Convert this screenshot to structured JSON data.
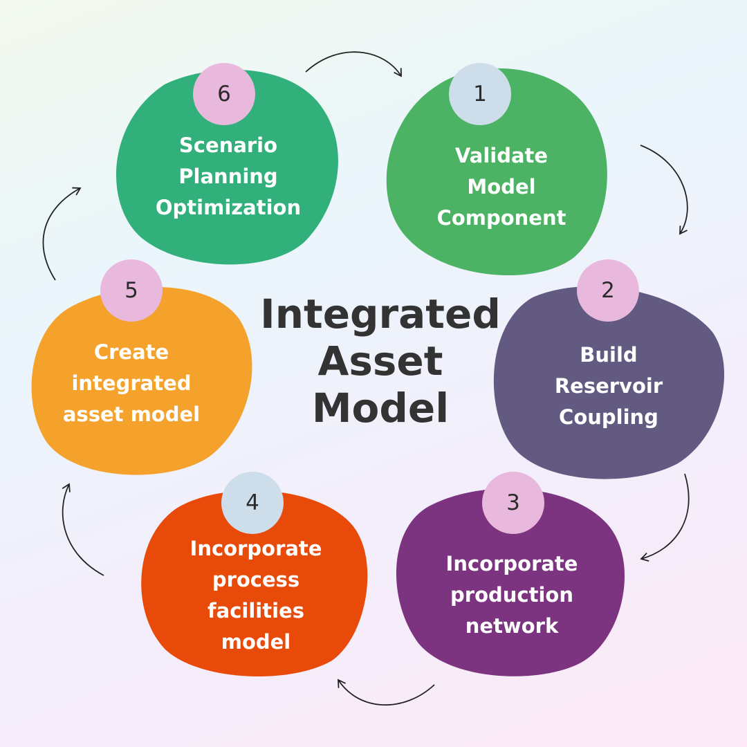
{
  "title": "Integrated\nAsset\nModel",
  "steps": [
    {
      "number": "1",
      "label": "Validate\nModel\nComponent",
      "color": "#4cb364",
      "badge_color": "#cdddea"
    },
    {
      "number": "2",
      "label": "Build\nReservoir\nCoupling",
      "color": "#625a80",
      "badge_color": "#e8b9dc"
    },
    {
      "number": "3",
      "label": "Incorporate\nproduction\nnetwork",
      "color": "#7d3480",
      "badge_color": "#e8b9dc"
    },
    {
      "number": "4",
      "label": "Incorporate\nprocess\nfacilities\nmodel",
      "color": "#e84a0a",
      "badge_color": "#cdddea"
    },
    {
      "number": "5",
      "label": "Create\nintegrated\nasset model",
      "color": "#f5a22c",
      "badge_color": "#e8b9dc"
    },
    {
      "number": "6",
      "label": "Scenario\nPlanning\nOptimization",
      "color": "#32b07b",
      "badge_color": "#e8b9dc"
    }
  ],
  "arrow_color": "#222222"
}
